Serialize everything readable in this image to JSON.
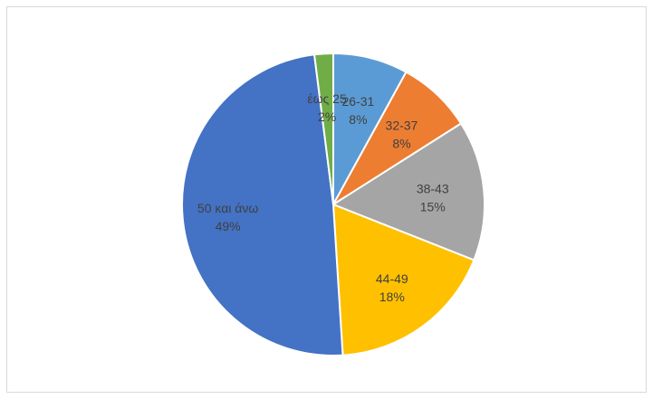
{
  "chart_data": {
    "type": "pie",
    "title": "",
    "slices": [
      {
        "label": "26-31",
        "value": 8,
        "pct": "8%",
        "color": "#5b9bd5"
      },
      {
        "label": "32-37",
        "value": 8,
        "pct": "8%",
        "color": "#ed7d31"
      },
      {
        "label": "38-43",
        "value": 15,
        "pct": "15%",
        "color": "#a5a5a5"
      },
      {
        "label": "44-49",
        "value": 18,
        "pct": "18%",
        "color": "#ffc000"
      },
      {
        "label": "50 και άνω",
        "value": 49,
        "pct": "49%",
        "color": "#4472c4"
      },
      {
        "label": "έως 25",
        "value": 2,
        "pct": "2%",
        "color": "#70ad47"
      }
    ]
  }
}
